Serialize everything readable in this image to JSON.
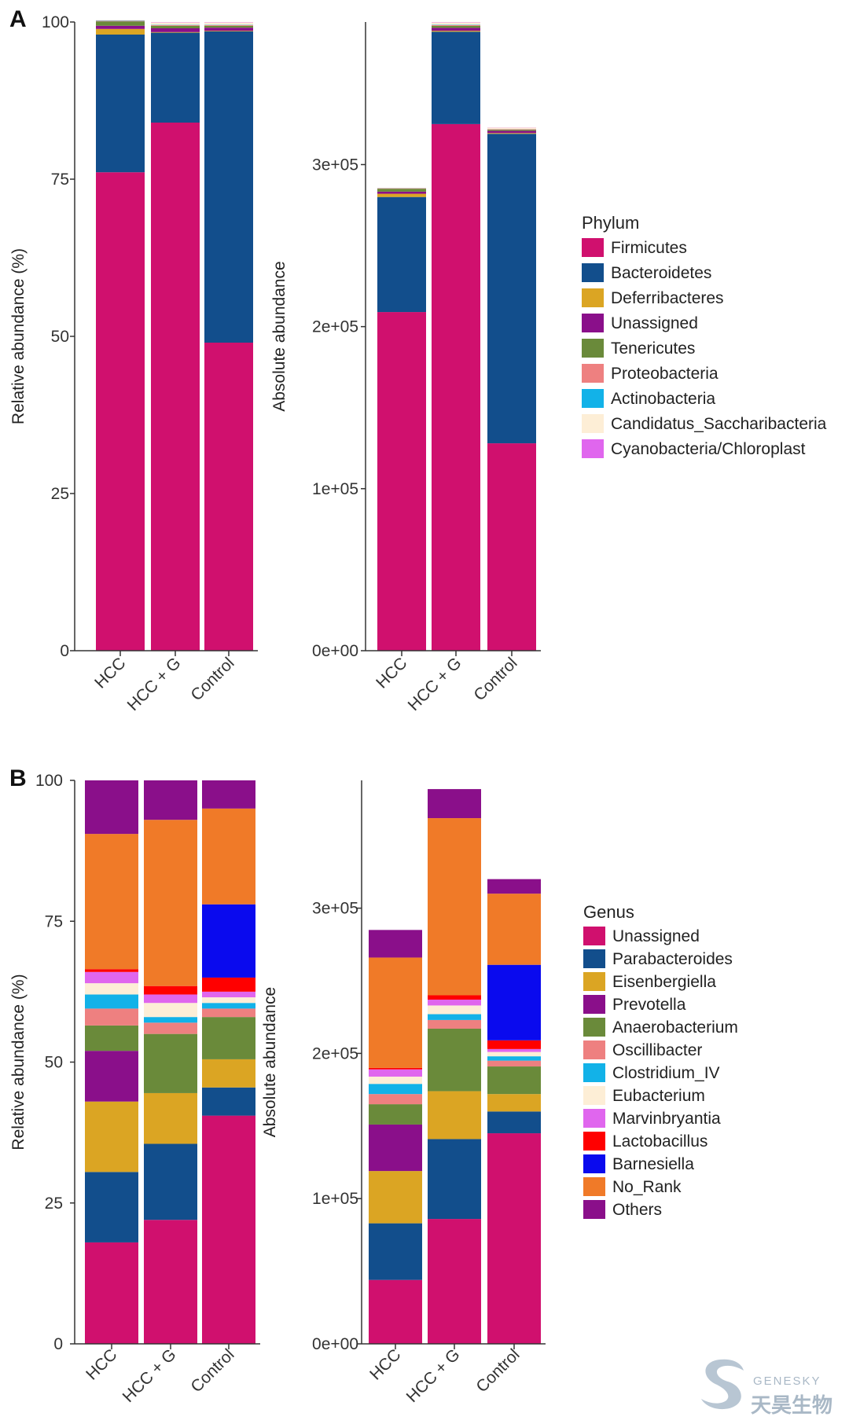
{
  "panels": {
    "A": {
      "letter": "A",
      "legend_title": "Phylum",
      "taxa": [
        {
          "name": "Firmicutes",
          "color": "#d0106e"
        },
        {
          "name": "Bacteroidetes",
          "color": "#124e8c"
        },
        {
          "name": "Deferribacteres",
          "color": "#dba523"
        },
        {
          "name": "Unassigned",
          "color": "#8a0f8a"
        },
        {
          "name": "Tenericutes",
          "color": "#6a8a3a"
        },
        {
          "name": "Proteobacteria",
          "color": "#ee8080"
        },
        {
          "name": "Actinobacteria",
          "color": "#12b2e8"
        },
        {
          "name": "Candidatus_Saccharibacteria",
          "color": "#fdeed6"
        },
        {
          "name": "Cyanobacteria/Chloroplast",
          "color": "#e066ee"
        }
      ]
    },
    "B": {
      "letter": "B",
      "legend_title": "Genus",
      "taxa": [
        {
          "name": "Unassigned",
          "color": "#d0106e"
        },
        {
          "name": "Parabacteroides",
          "color": "#124e8c"
        },
        {
          "name": "Eisenbergiella",
          "color": "#dba523"
        },
        {
          "name": "Prevotella",
          "color": "#8a0f8a"
        },
        {
          "name": "Anaerobacterium",
          "color": "#6a8a3a"
        },
        {
          "name": "Oscillibacter",
          "color": "#ee8080"
        },
        {
          "name": "Clostridium_IV",
          "color": "#12b2e8"
        },
        {
          "name": "Eubacterium",
          "color": "#fdeed6"
        },
        {
          "name": "Marvinbryantia",
          "color": "#e066ee"
        },
        {
          "name": "Lactobacillus",
          "color": "#ff0000"
        },
        {
          "name": "Barnesiella",
          "color": "#0a0aee"
        },
        {
          "name": "No_Rank",
          "color": "#f07a28"
        },
        {
          "name": "Others",
          "color": "#8a0f8a"
        }
      ]
    }
  },
  "watermark": {
    "brand": "GENESKY",
    "chinese": "天昊生物"
  },
  "chart_data": [
    {
      "type": "bar",
      "stacked": true,
      "panel": "A",
      "ylabel": "Relative abundance (%)",
      "categories": [
        "HCC",
        "HCC + G",
        "Control"
      ],
      "ylim": [
        0,
        100
      ],
      "yticks": [
        0,
        25,
        50,
        75,
        100
      ],
      "ytick_labels": [
        "0",
        "25",
        "50",
        "75",
        "100"
      ],
      "series": [
        {
          "name": "Firmicutes",
          "values": [
            76.1,
            84.0,
            49.0
          ]
        },
        {
          "name": "Bacteroidetes",
          "values": [
            21.9,
            14.3,
            49.5
          ]
        },
        {
          "name": "Deferribacteres",
          "values": [
            0.9,
            0.1,
            0.1
          ]
        },
        {
          "name": "Unassigned",
          "values": [
            0.5,
            0.6,
            0.5
          ]
        },
        {
          "name": "Tenericutes",
          "values": [
            0.7,
            0.4,
            0.3
          ]
        },
        {
          "name": "Proteobacteria",
          "values": [
            0.1,
            0.1,
            0.1
          ]
        },
        {
          "name": "Actinobacteria",
          "values": [
            0.05,
            0.05,
            0.05
          ]
        },
        {
          "name": "Candidatus_Saccharibacteria",
          "values": [
            0.05,
            0.4,
            0.4
          ]
        },
        {
          "name": "Cyanobacteria/Chloroplast",
          "values": [
            0.0,
            0.05,
            0.05
          ]
        }
      ]
    },
    {
      "type": "bar",
      "stacked": true,
      "panel": "A",
      "ylabel": "Absolute abundance",
      "categories": [
        "HCC",
        "HCC + G",
        "Control"
      ],
      "ylim": [
        0,
        388000
      ],
      "yticks": [
        0,
        100000,
        200000,
        300000
      ],
      "ytick_labels": [
        "0e+00",
        "1e+05",
        "2e+05",
        "3e+05"
      ],
      "series": [
        {
          "name": "Firmicutes",
          "values": [
            209000,
            325000,
            128000
          ]
        },
        {
          "name": "Bacteroidetes",
          "values": [
            71000,
            57000,
            191000
          ]
        },
        {
          "name": "Deferribacteres",
          "values": [
            2000,
            600,
            500
          ]
        },
        {
          "name": "Unassigned",
          "values": [
            1300,
            1800,
            1300
          ]
        },
        {
          "name": "Tenericutes",
          "values": [
            1800,
            1200,
            700
          ]
        },
        {
          "name": "Proteobacteria",
          "values": [
            300,
            500,
            300
          ]
        },
        {
          "name": "Actinobacteria",
          "values": [
            100,
            200,
            100
          ]
        },
        {
          "name": "Candidatus_Saccharibacteria",
          "values": [
            100,
            1500,
            1000
          ]
        },
        {
          "name": "Cyanobacteria/Chloroplast",
          "values": [
            0,
            200,
            100
          ]
        }
      ]
    },
    {
      "type": "bar",
      "stacked": true,
      "panel": "B",
      "ylabel": "Relative abundance (%)",
      "categories": [
        "HCC",
        "HCC + G",
        "Control"
      ],
      "ylim": [
        0,
        100
      ],
      "yticks": [
        0,
        25,
        50,
        75,
        100
      ],
      "ytick_labels": [
        "0",
        "25",
        "50",
        "75",
        "100"
      ],
      "series": [
        {
          "name": "Unassigned",
          "values": [
            18.0,
            22.0,
            40.5
          ]
        },
        {
          "name": "Parabacteroides",
          "values": [
            12.5,
            13.5,
            5.0
          ]
        },
        {
          "name": "Eisenbergiella",
          "values": [
            12.5,
            9.0,
            5.0
          ]
        },
        {
          "name": "Prevotella",
          "values": [
            9.0,
            0.0,
            0.0
          ]
        },
        {
          "name": "Anaerobacterium",
          "values": [
            4.5,
            10.5,
            7.5
          ]
        },
        {
          "name": "Oscillibacter",
          "values": [
            3.0,
            2.0,
            1.5
          ]
        },
        {
          "name": "Clostridium_IV",
          "values": [
            2.5,
            1.0,
            1.0
          ]
        },
        {
          "name": "Eubacterium",
          "values": [
            2.0,
            2.5,
            1.0
          ]
        },
        {
          "name": "Marvinbryantia",
          "values": [
            2.0,
            1.5,
            1.0
          ]
        },
        {
          "name": "Lactobacillus",
          "values": [
            0.5,
            1.5,
            2.5
          ]
        },
        {
          "name": "Barnesiella",
          "values": [
            0.0,
            0.0,
            13.0
          ]
        },
        {
          "name": "No_Rank",
          "values": [
            24.0,
            29.5,
            17.0
          ]
        },
        {
          "name": "Others",
          "values": [
            9.5,
            7.0,
            5.0
          ]
        }
      ]
    },
    {
      "type": "bar",
      "stacked": true,
      "panel": "B",
      "ylabel": "Absolute abundance",
      "categories": [
        "HCC",
        "HCC + G",
        "Control"
      ],
      "ylim": [
        0,
        388000
      ],
      "yticks": [
        0,
        100000,
        200000,
        300000
      ],
      "ytick_labels": [
        "0e+00",
        "1e+05",
        "2e+05",
        "3e+05"
      ],
      "series": [
        {
          "name": "Unassigned",
          "values": [
            44000,
            86000,
            145000
          ]
        },
        {
          "name": "Parabacteroides",
          "values": [
            39000,
            55000,
            15000
          ]
        },
        {
          "name": "Eisenbergiella",
          "values": [
            36000,
            33000,
            12000
          ]
        },
        {
          "name": "Prevotella",
          "values": [
            32000,
            0,
            0
          ]
        },
        {
          "name": "Anaerobacterium",
          "values": [
            14000,
            43000,
            19000
          ]
        },
        {
          "name": "Oscillibacter",
          "values": [
            7000,
            6000,
            4000
          ]
        },
        {
          "name": "Clostridium_IV",
          "values": [
            7000,
            4000,
            3000
          ]
        },
        {
          "name": "Eubacterium",
          "values": [
            5000,
            6000,
            3000
          ]
        },
        {
          "name": "Marvinbryantia",
          "values": [
            5000,
            4000,
            2000
          ]
        },
        {
          "name": "Lactobacillus",
          "values": [
            1000,
            3000,
            6000
          ]
        },
        {
          "name": "Barnesiella",
          "values": [
            0,
            0,
            52000
          ]
        },
        {
          "name": "No_Rank",
          "values": [
            76000,
            122000,
            49000
          ]
        },
        {
          "name": "Others",
          "values": [
            19000,
            20000,
            10000
          ]
        }
      ]
    }
  ]
}
